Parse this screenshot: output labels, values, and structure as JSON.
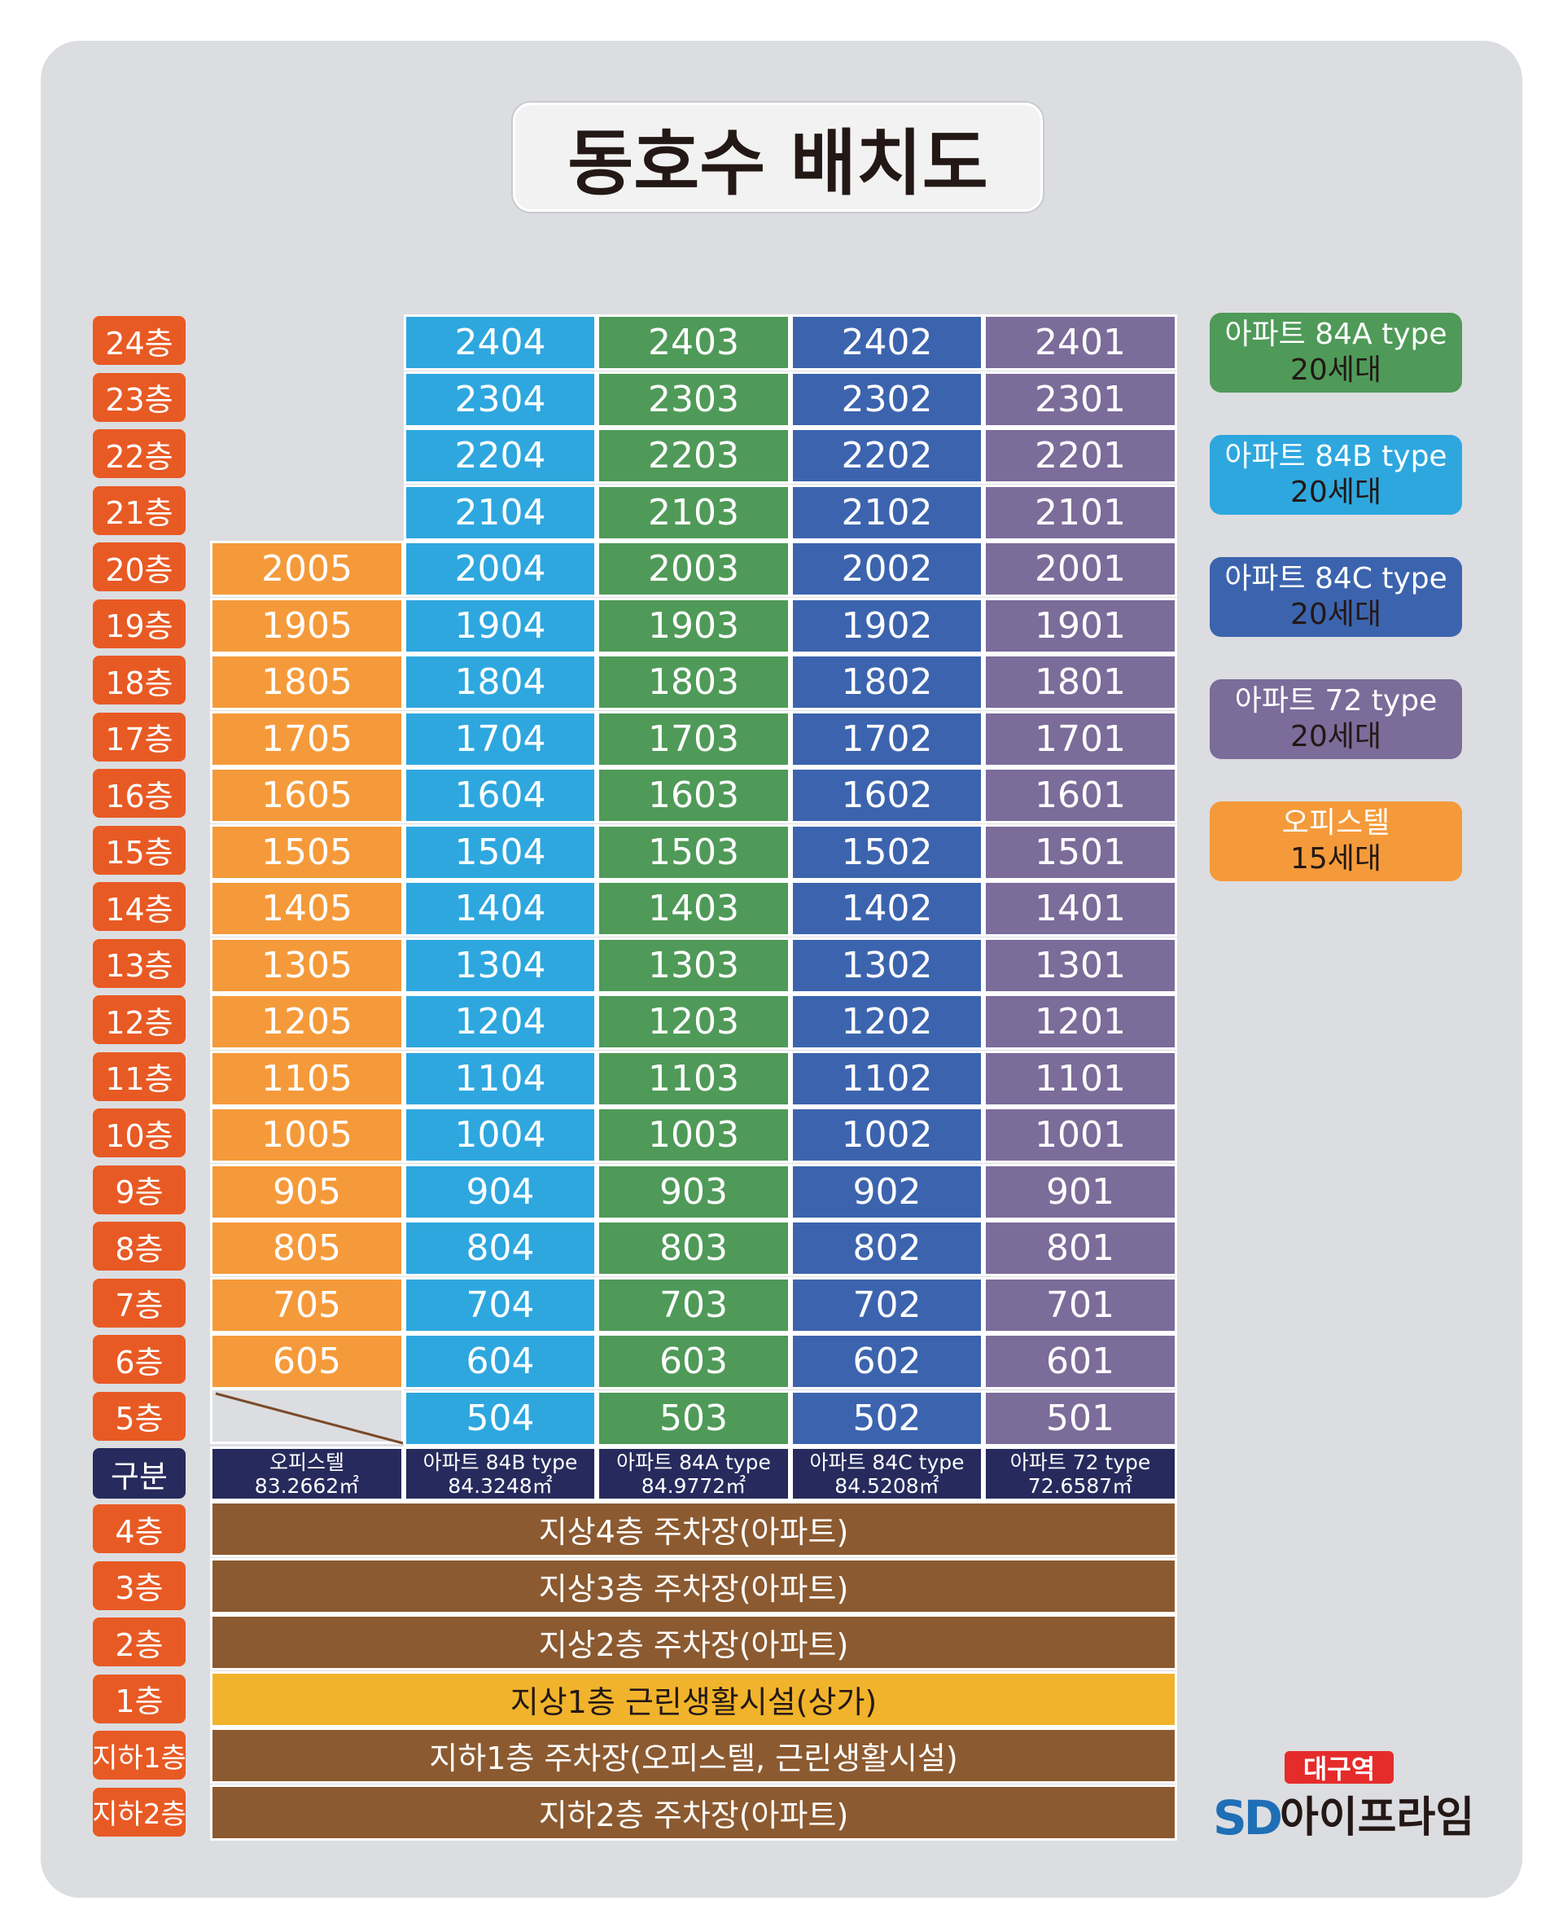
{
  "title": "동호수 배치도",
  "colors": {
    "officetel": "#f59a3a",
    "type84B": "#2ea7df",
    "type84A": "#4f9a58",
    "type84C": "#3c64ae",
    "type72": "#7b6c9a",
    "floor_tag": "#e85a24",
    "spec_row": "#262a5c",
    "parking": "#8c5a30",
    "retail": "#f1b32b"
  },
  "floors": [
    "24층",
    "23층",
    "22층",
    "21층",
    "20층",
    "19층",
    "18층",
    "17층",
    "16층",
    "15층",
    "14층",
    "13층",
    "12층",
    "11층",
    "10층",
    "9층",
    "8층",
    "7층",
    "6층",
    "5층"
  ],
  "columns": [
    {
      "key": "officetel",
      "type": "오피스텔",
      "area": "83.2662㎡",
      "top_floor": 20,
      "bottom_floor": 6,
      "suffix": "05"
    },
    {
      "key": "type84B",
      "type": "아파트 84B type",
      "area": "84.3248㎡",
      "top_floor": 24,
      "bottom_floor": 5,
      "suffix": "04"
    },
    {
      "key": "type84A",
      "type": "아파트 84A type",
      "area": "84.9772㎡",
      "top_floor": 24,
      "bottom_floor": 5,
      "suffix": "03"
    },
    {
      "key": "type84C",
      "type": "아파트 84C type",
      "area": "84.5208㎡",
      "top_floor": 24,
      "bottom_floor": 5,
      "suffix": "02"
    },
    {
      "key": "type72",
      "type": "아파트 72 type",
      "area": "72.6587㎡",
      "top_floor": 24,
      "bottom_floor": 5,
      "suffix": "01"
    }
  ],
  "spec_label": "구분",
  "lower": [
    {
      "floor": "4층",
      "label": "지상4층 주차장(아파트)",
      "kind": "parking"
    },
    {
      "floor": "3층",
      "label": "지상3층 주차장(아파트)",
      "kind": "parking"
    },
    {
      "floor": "2층",
      "label": "지상2층 주차장(아파트)",
      "kind": "parking"
    },
    {
      "floor": "1층",
      "label": "지상1층 근린생활시설(상가)",
      "kind": "retail"
    },
    {
      "floor": "지하1층",
      "label": "지하1층 주차장(오피스텔, 근린생활시설)",
      "kind": "parking"
    },
    {
      "floor": "지하2층",
      "label": "지하2층 주차장(아파트)",
      "kind": "parking"
    }
  ],
  "legend": [
    {
      "name": "아파트 84A type",
      "count": "20세대",
      "color": "#4f9a58"
    },
    {
      "name": "아파트 84B type",
      "count": "20세대",
      "color": "#2ea7df"
    },
    {
      "name": "아파트 84C type",
      "count": "20세대",
      "color": "#3c64ae"
    },
    {
      "name": "아파트 72 type",
      "count": "20세대",
      "color": "#7b6c9a"
    },
    {
      "name": "오피스텔",
      "count": "15세대",
      "color": "#f59a3a"
    }
  ],
  "brand": {
    "badge": "대구역",
    "mark": "SD",
    "name": "아이프라임"
  }
}
